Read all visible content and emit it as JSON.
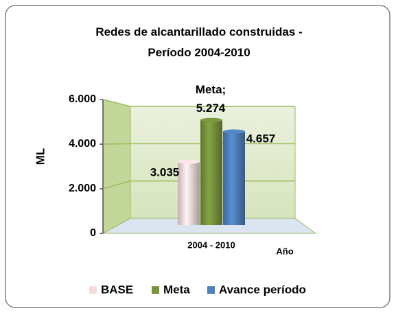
{
  "chart_data": {
    "type": "bar3d",
    "title": "Redes de alcantarillado construidas - Período 2004-2010",
    "y_label": "ML",
    "x_label": "Año",
    "categories": [
      "2004 - 2010"
    ],
    "series": [
      {
        "name": "BASE",
        "color": "#f2dcdb",
        "values": [
          3035
        ],
        "value_labels": [
          "3.035"
        ]
      },
      {
        "name": "Meta",
        "color": "#77933c",
        "values": [
          5274
        ],
        "value_labels": [
          "Meta; 5.274"
        ]
      },
      {
        "name": "Avance período",
        "color": "#4f81bd",
        "values": [
          4657
        ],
        "value_labels": [
          "4.657"
        ]
      }
    ],
    "ylim": [
      0,
      6000
    ],
    "yticks": [
      0,
      {
        "value": 2000,
        "label": "2.000"
      },
      {
        "value": 4000,
        "label": "4.000"
      },
      {
        "value": 6000,
        "label": "6.000"
      }
    ],
    "grid": true,
    "legend": "bottom"
  }
}
